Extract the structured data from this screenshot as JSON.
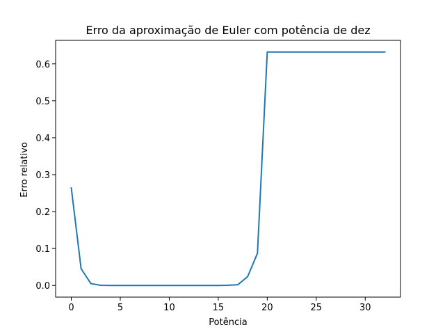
{
  "chart_data": {
    "type": "line",
    "title": "Erro da aproximação de Euler com potência de dez",
    "xlabel": "Potência",
    "ylabel": "Erro relativo",
    "xlim": [
      -1.6,
      33.6
    ],
    "ylim": [
      -0.0316,
      0.6636
    ],
    "xticks": [
      0,
      5,
      10,
      15,
      20,
      25,
      30
    ],
    "yticks": [
      0.0,
      0.1,
      0.2,
      0.3,
      0.4,
      0.5,
      0.6
    ],
    "ytick_labels": [
      "0.0",
      "0.1",
      "0.2",
      "0.3",
      "0.4",
      "0.5",
      "0.6"
    ],
    "grid": false,
    "series": [
      {
        "name": "Erro relativo",
        "color": "#1f77b4",
        "x": [
          0,
          1,
          2,
          3,
          4,
          5,
          6,
          7,
          8,
          9,
          10,
          11,
          12,
          13,
          14,
          15,
          16,
          17,
          18,
          19,
          20,
          21,
          22,
          23,
          24,
          25,
          26,
          27,
          28,
          29,
          30,
          31,
          32
        ],
        "y": [
          0.264,
          0.0455,
          0.005,
          0.0005,
          0.0,
          0.0,
          0.0,
          0.0,
          0.0,
          0.0,
          0.0,
          0.0,
          0.0,
          0.0,
          0.0,
          0.0,
          0.0005,
          0.002,
          0.024,
          0.087,
          0.632,
          0.632,
          0.632,
          0.632,
          0.632,
          0.632,
          0.632,
          0.632,
          0.632,
          0.632,
          0.632,
          0.632,
          0.632
        ]
      }
    ]
  }
}
